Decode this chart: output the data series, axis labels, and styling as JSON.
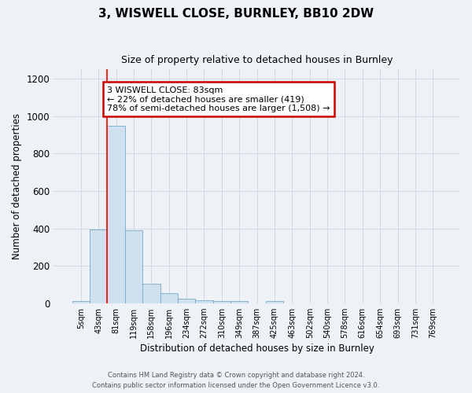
{
  "title": "3, WISWELL CLOSE, BURNLEY, BB10 2DW",
  "subtitle": "Size of property relative to detached houses in Burnley",
  "xlabel": "Distribution of detached houses by size in Burnley",
  "ylabel": "Number of detached properties",
  "bar_labels": [
    "5sqm",
    "43sqm",
    "81sqm",
    "119sqm",
    "158sqm",
    "196sqm",
    "234sqm",
    "272sqm",
    "310sqm",
    "349sqm",
    "387sqm",
    "425sqm",
    "463sqm",
    "502sqm",
    "540sqm",
    "578sqm",
    "616sqm",
    "654sqm",
    "693sqm",
    "731sqm",
    "769sqm"
  ],
  "bar_heights": [
    10,
    395,
    950,
    390,
    105,
    52,
    22,
    15,
    10,
    10,
    0,
    10,
    0,
    0,
    0,
    0,
    0,
    0,
    0,
    0,
    0
  ],
  "bar_color": "#cfe0ee",
  "bar_edge_color": "#7aaac8",
  "background_color": "#eef2f7",
  "grid_color": "#d0d8e4",
  "red_line_x": 2,
  "annotation_text": "3 WISWELL CLOSE: 83sqm\n← 22% of detached houses are smaller (419)\n78% of semi-detached houses are larger (1,508) →",
  "annotation_box_facecolor": "#ffffff",
  "annotation_box_edge": "#cc0000",
  "ylim": [
    0,
    1250
  ],
  "yticks": [
    0,
    200,
    400,
    600,
    800,
    1000,
    1200
  ],
  "footer_line1": "Contains HM Land Registry data © Crown copyright and database right 2024.",
  "footer_line2": "Contains public sector information licensed under the Open Government Licence v3.0."
}
